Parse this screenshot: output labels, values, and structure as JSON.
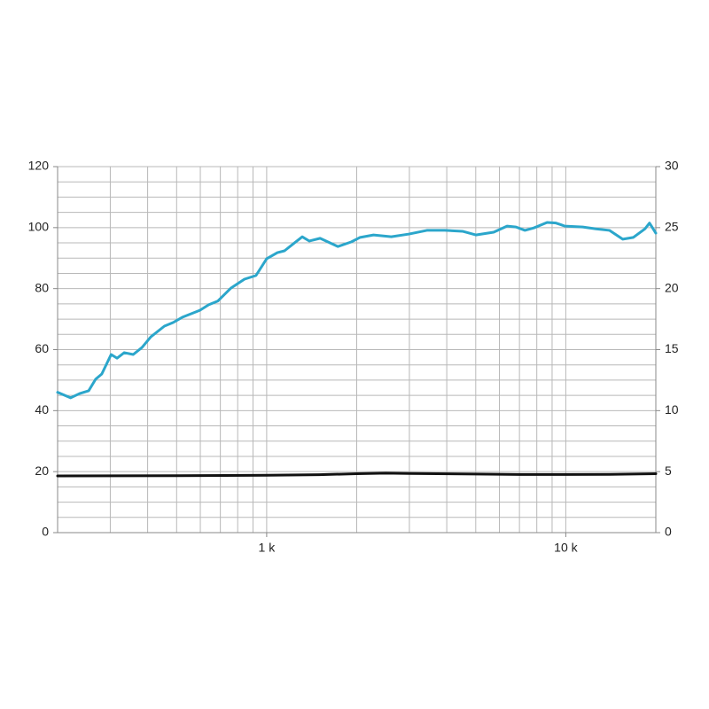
{
  "chart_data": {
    "type": "line",
    "xscale": "log",
    "xlim": [
      200,
      20000
    ],
    "xticks": [
      {
        "value": 1000,
        "label": "1 k"
      },
      {
        "value": 10000,
        "label": "10 k"
      }
    ],
    "xgrid": [
      200,
      300,
      400,
      500,
      600,
      700,
      800,
      900,
      1000,
      2000,
      3000,
      4000,
      5000,
      6000,
      7000,
      8000,
      9000,
      10000,
      20000
    ],
    "ylim": [
      0,
      120
    ],
    "yticks": [
      0,
      20,
      40,
      60,
      80,
      100,
      120
    ],
    "ygrid": [
      0,
      5,
      10,
      15,
      20,
      25,
      30,
      35,
      40,
      45,
      50,
      55,
      60,
      65,
      70,
      75,
      80,
      85,
      90,
      95,
      100,
      105,
      110,
      115,
      120
    ],
    "y2lim": [
      0,
      30
    ],
    "y2ticks": [
      0,
      5,
      10,
      15,
      20,
      25,
      30
    ],
    "grid": true,
    "series": [
      {
        "color": "#2ba6cb",
        "axis": "y",
        "x": [
          200,
          221,
          237,
          254,
          268,
          281,
          302,
          316,
          334,
          358,
          383,
          410,
          455,
          487,
          522,
          598,
          640,
          686,
          760,
          843,
          921,
          1000,
          1086,
          1147,
          1228,
          1315,
          1389,
          1509,
          1729,
          1917,
          2054,
          2276,
          2610,
          2993,
          3433,
          3937,
          4515,
          5004,
          5740,
          6364,
          6813,
          7302,
          7817,
          8660,
          9272,
          9934,
          11390,
          12620,
          13990,
          15500,
          16830,
          18400,
          19050,
          20000
        ],
        "values": [
          46,
          44.2,
          45.6,
          46.5,
          50.3,
          52,
          58.4,
          57.2,
          59,
          58.4,
          60.7,
          64.2,
          67.7,
          68.9,
          70.6,
          72.9,
          74.7,
          75.9,
          80.2,
          83.1,
          84.3,
          89.8,
          91.8,
          92.4,
          94.7,
          97,
          95.6,
          96.5,
          93.8,
          95.3,
          96.8,
          97.6,
          97,
          97.9,
          99.1,
          99.1,
          98.8,
          97.6,
          98.5,
          100.5,
          100.2,
          99.1,
          99.9,
          101.7,
          101.5,
          100.5,
          100.2,
          99.6,
          99.1,
          96.2,
          96.8,
          99.6,
          101.5,
          98.2
        ]
      },
      {
        "color": "#111111",
        "axis": "y2",
        "x": [
          200,
          500,
          1000,
          1500,
          2000,
          2500,
          3000,
          5000,
          7000,
          10000,
          14000,
          20000
        ],
        "values": [
          4.65,
          4.67,
          4.7,
          4.75,
          4.83,
          4.88,
          4.85,
          4.8,
          4.77,
          4.77,
          4.78,
          4.83
        ]
      }
    ]
  }
}
